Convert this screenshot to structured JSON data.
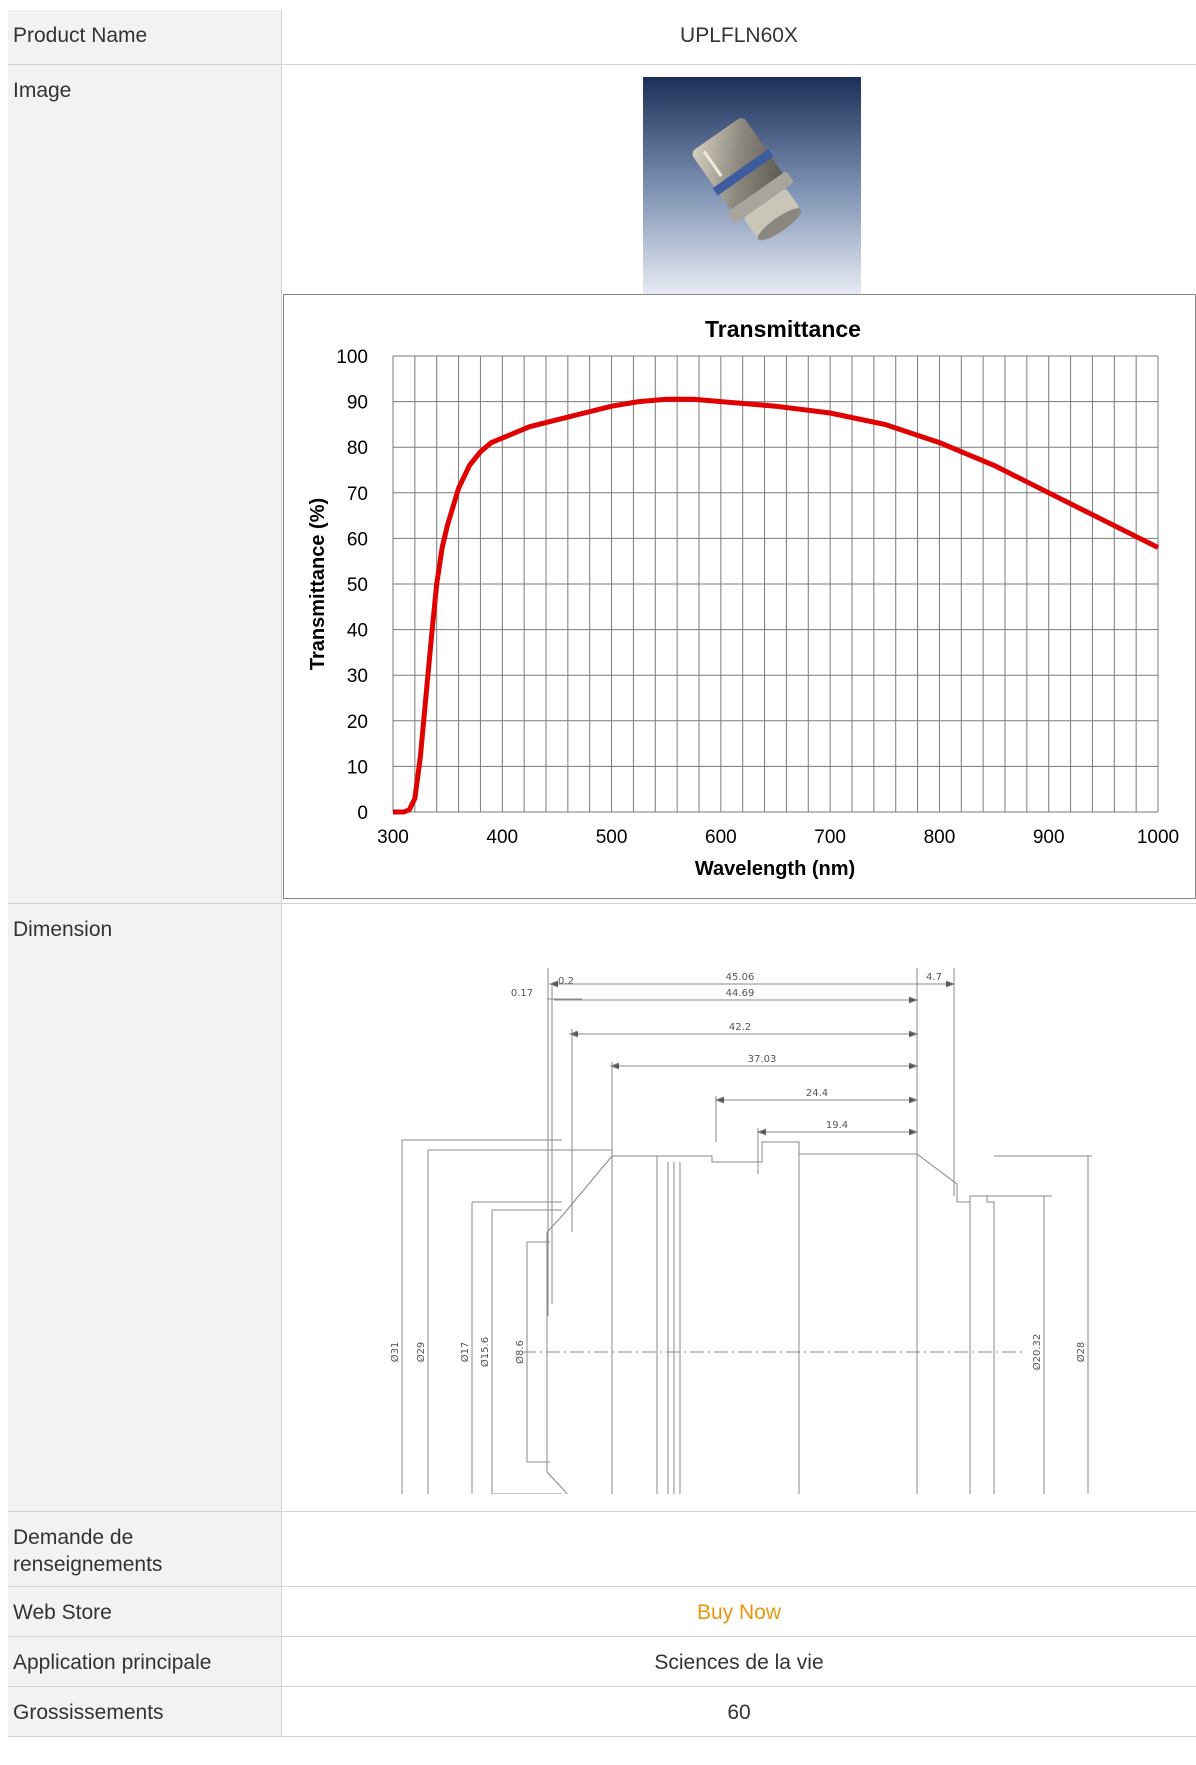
{
  "rows": {
    "product_name": {
      "label": "Product Name",
      "value": "UPLFLN60X"
    },
    "image": {
      "label": "Image"
    },
    "dimension": {
      "label": "Dimension"
    },
    "inquiry": {
      "label": "Demande de renseignements",
      "value": ""
    },
    "web_store": {
      "label": "Web Store",
      "value": "Buy Now"
    },
    "application": {
      "label": "Application principale",
      "value": "Sciences de la vie"
    },
    "magnification": {
      "label": "Grossissements",
      "value": "60"
    }
  },
  "colors": {
    "link": "#e8960e",
    "curve": "#e00000",
    "label_bg": "#f2f2f2",
    "border": "#d4d4d4"
  },
  "chart_data": {
    "type": "line",
    "title": "Transmittance",
    "xlabel": "Wavelength (nm)",
    "ylabel": "Transmittance (%)",
    "xlim": [
      300,
      1000
    ],
    "ylim": [
      0,
      100
    ],
    "xticks": [
      300,
      400,
      500,
      600,
      700,
      800,
      900,
      1000
    ],
    "yticks": [
      0,
      10,
      20,
      30,
      40,
      50,
      60,
      70,
      80,
      90,
      100
    ],
    "grid": true,
    "series": [
      {
        "x": [
          300,
          310,
          315,
          320,
          325,
          330,
          335,
          340,
          345,
          350,
          360,
          370,
          380,
          390,
          400,
          425,
          450,
          475,
          500,
          525,
          550,
          575,
          600,
          650,
          700,
          750,
          800,
          850,
          900,
          950,
          1000
        ],
        "y": [
          0,
          0,
          0.5,
          3,
          12,
          25,
          38,
          50,
          58,
          63,
          71,
          76,
          79,
          81,
          82,
          84.5,
          86,
          87.5,
          89,
          90,
          90.5,
          90.5,
          90,
          89,
          87.5,
          85,
          81,
          76,
          70,
          64,
          58
        ]
      }
    ]
  },
  "dimension_labels": {
    "l45_06": "45.06",
    "l4_7": "4.7",
    "l0_17": "0.17",
    "l0_2": "0.2",
    "l44_69": "44.69",
    "l42_2": "42.2",
    "l37_03": "37.03",
    "l24_4": "24.4",
    "l19_4": "19.4",
    "d31": "Ø31",
    "d29": "Ø29",
    "d17": "Ø17",
    "d15_6": "Ø15.6",
    "d8_6": "Ø8.6",
    "d20_32": "Ø20.32",
    "d28": "Ø28"
  }
}
